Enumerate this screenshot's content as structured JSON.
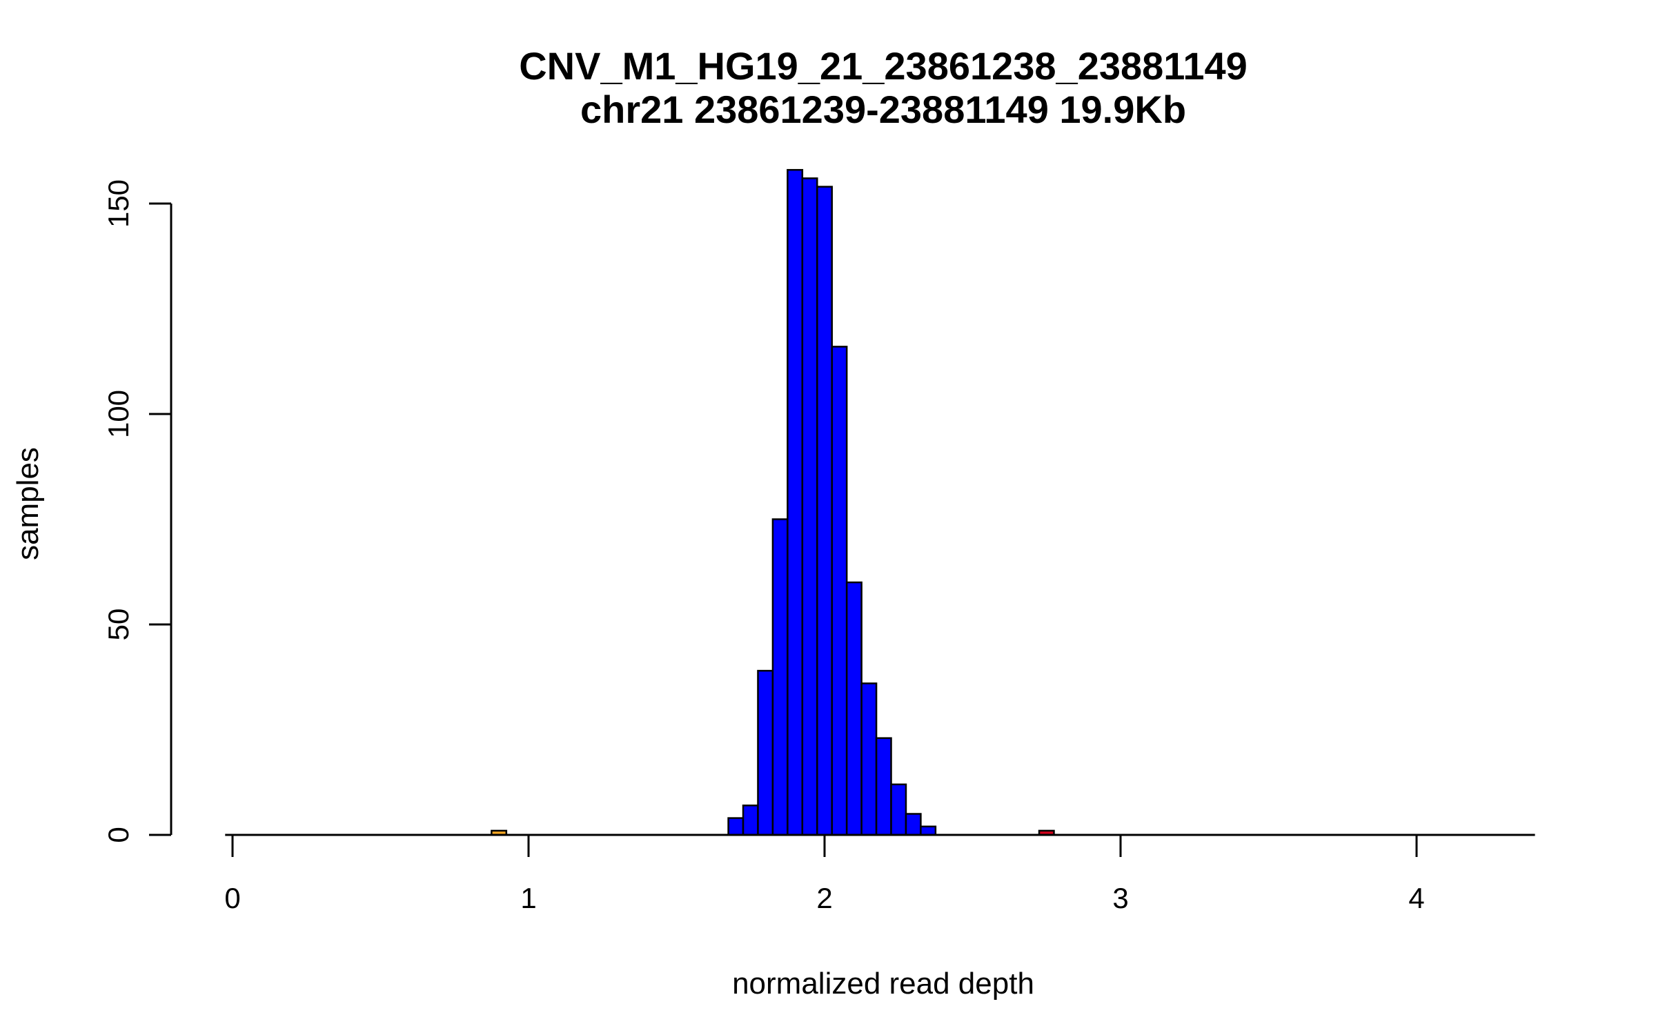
{
  "chart_data": {
    "type": "bar",
    "title": "CNV_M1_HG19_21_23861238_23881149",
    "subtitle": "chr21 23861239-23881149 19.9Kb",
    "xlabel": "normalized read depth",
    "ylabel": "samples",
    "xlim": [
      -0.025,
      4.4
    ],
    "ylim": [
      0,
      158
    ],
    "x_ticks": [
      0,
      1,
      2,
      3,
      4
    ],
    "y_ticks": [
      0,
      50,
      100,
      150
    ],
    "grid": false,
    "legend": "none",
    "bin_width": 0.05,
    "bins": [
      {
        "x0": 0.875,
        "x1": 0.925,
        "value": 1,
        "color": "#f5a623"
      },
      {
        "x0": 1.675,
        "x1": 1.725,
        "value": 4,
        "color": "#0000ff"
      },
      {
        "x0": 1.725,
        "x1": 1.775,
        "value": 7,
        "color": "#0000ff"
      },
      {
        "x0": 1.775,
        "x1": 1.825,
        "value": 39,
        "color": "#0000ff"
      },
      {
        "x0": 1.825,
        "x1": 1.875,
        "value": 75,
        "color": "#0000ff"
      },
      {
        "x0": 1.875,
        "x1": 1.925,
        "value": 158,
        "color": "#0000ff"
      },
      {
        "x0": 1.925,
        "x1": 1.975,
        "value": 156,
        "color": "#0000ff"
      },
      {
        "x0": 1.975,
        "x1": 2.025,
        "value": 154,
        "color": "#0000ff"
      },
      {
        "x0": 2.025,
        "x1": 2.075,
        "value": 116,
        "color": "#0000ff"
      },
      {
        "x0": 2.075,
        "x1": 2.125,
        "value": 60,
        "color": "#0000ff"
      },
      {
        "x0": 2.125,
        "x1": 2.175,
        "value": 36,
        "color": "#0000ff"
      },
      {
        "x0": 2.175,
        "x1": 2.225,
        "value": 23,
        "color": "#0000ff"
      },
      {
        "x0": 2.225,
        "x1": 2.275,
        "value": 12,
        "color": "#0000ff"
      },
      {
        "x0": 2.275,
        "x1": 2.325,
        "value": 5,
        "color": "#0000ff"
      },
      {
        "x0": 2.325,
        "x1": 2.375,
        "value": 2,
        "color": "#0000ff"
      },
      {
        "x0": 2.725,
        "x1": 2.775,
        "value": 1,
        "color": "#d0021b"
      }
    ],
    "baseline": {
      "x0": -0.025,
      "x1": 4.4
    }
  }
}
